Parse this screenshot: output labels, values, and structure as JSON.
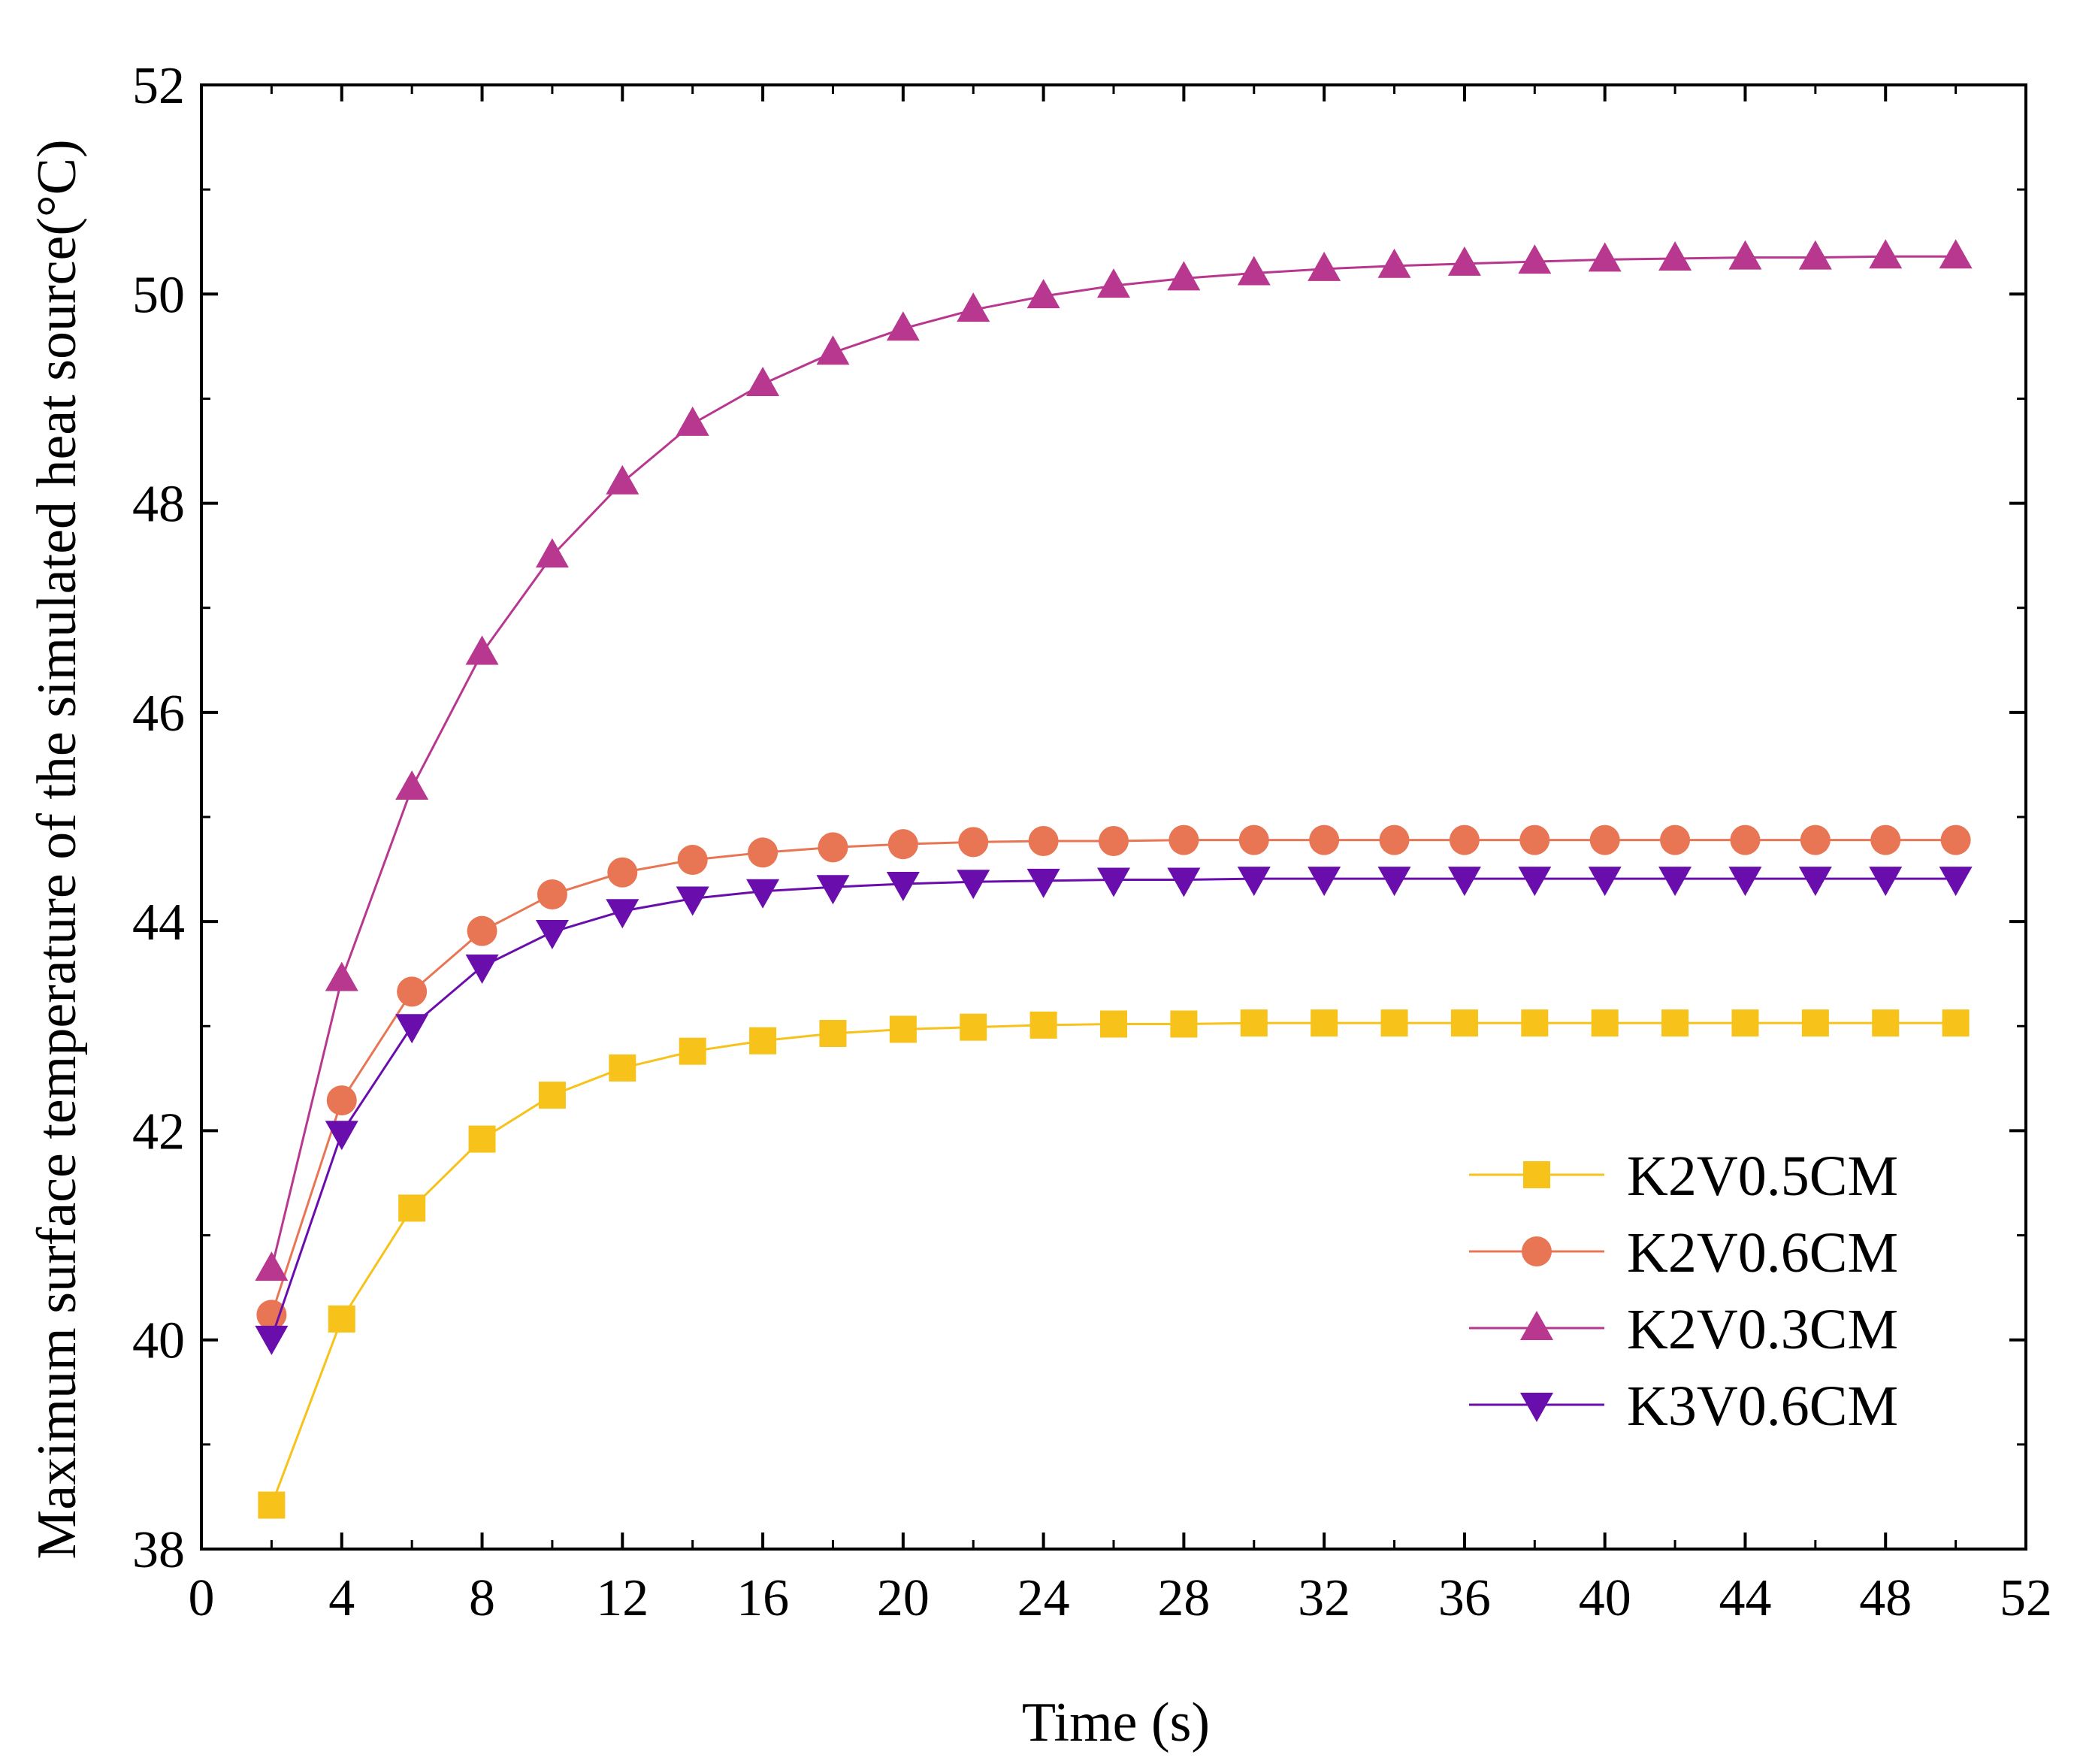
{
  "chart_data": {
    "type": "line",
    "title": "",
    "xlabel": "Time (s)",
    "ylabel": "Maximum surface temperature of the simulated heat source(°C)",
    "xlim": [
      0,
      52
    ],
    "ylim": [
      38,
      52
    ],
    "x_ticks": [
      "0",
      "4",
      "8",
      "12",
      "16",
      "20",
      "24",
      "28",
      "32",
      "36",
      "40",
      "44",
      "48",
      "52"
    ],
    "y_ticks": [
      "38",
      "40",
      "42",
      "44",
      "46",
      "48",
      "50",
      "52"
    ],
    "grid": false,
    "legend_position": "bottom-right",
    "x": [
      2,
      4,
      6,
      8,
      10,
      12,
      14,
      16,
      18,
      20,
      22,
      24,
      26,
      28,
      30,
      32,
      34,
      36,
      38,
      40,
      42,
      44,
      46,
      48,
      50
    ],
    "series": [
      {
        "name": "K2V0.5CM",
        "color": "#F7C219",
        "marker": "square",
        "values": [
          38.42,
          40.2,
          41.26,
          41.92,
          42.34,
          42.6,
          42.76,
          42.86,
          42.93,
          42.97,
          42.99,
          43.01,
          43.02,
          43.02,
          43.03,
          43.03,
          43.03,
          43.03,
          43.03,
          43.03,
          43.03,
          43.03,
          43.03,
          43.03,
          43.03
        ]
      },
      {
        "name": "K2V0.6CM",
        "color": "#E87655",
        "marker": "circle",
        "values": [
          40.24,
          42.29,
          43.33,
          43.91,
          44.26,
          44.47,
          44.59,
          44.66,
          44.71,
          44.74,
          44.76,
          44.77,
          44.77,
          44.78,
          44.78,
          44.78,
          44.78,
          44.78,
          44.78,
          44.78,
          44.78,
          44.78,
          44.78,
          44.78,
          44.78
        ]
      },
      {
        "name": "K2V0.3CM",
        "color": "#B8378F",
        "marker": "triangle-up",
        "values": [
          40.68,
          43.45,
          45.28,
          46.57,
          47.5,
          48.2,
          48.76,
          49.14,
          49.44,
          49.67,
          49.85,
          49.98,
          50.08,
          50.15,
          50.2,
          50.24,
          50.27,
          50.29,
          50.31,
          50.33,
          50.34,
          50.35,
          50.35,
          50.36,
          50.36
        ]
      },
      {
        "name": "K3V0.6CM",
        "color": "#6A0DAD",
        "marker": "triangle-down",
        "values": [
          40.02,
          41.98,
          43.0,
          43.57,
          43.9,
          44.1,
          44.22,
          44.29,
          44.33,
          44.36,
          44.38,
          44.39,
          44.4,
          44.4,
          44.41,
          44.41,
          44.41,
          44.41,
          44.41,
          44.41,
          44.41,
          44.41,
          44.41,
          44.41,
          44.41
        ]
      }
    ]
  }
}
